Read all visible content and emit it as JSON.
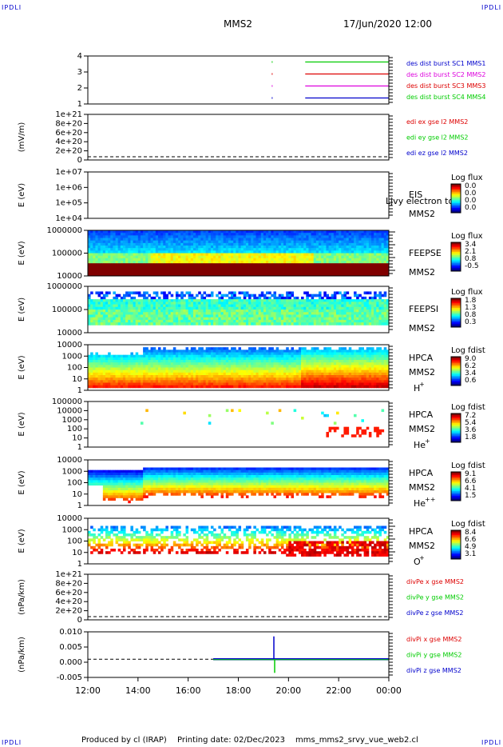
{
  "corner_label": "IPDLI",
  "header": {
    "spacecraft": "MMS2",
    "datetime": "17/Jun/2020 12:00"
  },
  "footer": {
    "produced": "Produced by cl (IRAP)",
    "printing": "Printing date: 02/Dec/2023",
    "file": "mms_mms2_srvy_vue_web2.cl"
  },
  "colors": {
    "red": "#dd0000",
    "green": "#00cc00",
    "blue": "#0000cc",
    "magenta": "#dd00dd"
  },
  "time_axis": [
    "12:00",
    "14:00",
    "16:00",
    "18:00",
    "20:00",
    "22:00",
    "00:00"
  ],
  "chart_data": [
    {
      "id": "des-dist-burst",
      "type": "line",
      "yticks": [
        "1",
        "2",
        "3",
        "4"
      ],
      "ylim": [
        0.5,
        4.5
      ],
      "series": [
        {
          "name": "des dist burst SC1 MMS1",
          "color": "#00cc00",
          "y": 4,
          "start": "20:40",
          "end": "00:00"
        },
        {
          "name": "des dist burst SC2 MMS2",
          "color": "#dd0000",
          "y": 3,
          "start": "20:40",
          "end": "00:00"
        },
        {
          "name": "des dist burst SC3 MMS3",
          "color": "#dd00dd",
          "y": 2,
          "start": "20:40",
          "end": "00:00"
        },
        {
          "name": "des dist burst SC4 MMS4",
          "color": "#0000cc",
          "y": 1,
          "start": "20:40",
          "end": "00:00"
        }
      ],
      "legend_colors": [
        "#0000cc",
        "#dd00dd",
        "#dd0000",
        "#00cc00"
      ],
      "legend": [
        "des dist burst SC1 MMS1",
        "des dist burst SC2 MMS2",
        "des dist burst SC3 MMS3",
        "des dist burst SC4 MMS4"
      ]
    },
    {
      "id": "edi-e",
      "type": "line",
      "ylabel": "(mV/m)",
      "yticks": [
        "1e+21",
        "8e+20",
        "6e+20",
        "4e+20",
        "2e+20",
        "0"
      ],
      "ylim": [
        0,
        1e+21
      ],
      "legend_colors": [
        "#dd0000",
        "#00cc00",
        "#0000cc"
      ],
      "legend": [
        "edi ex gse l2 MMS2",
        "edi ey gse l2 MMS2",
        "edi ez gse l2 MMS2"
      ]
    },
    {
      "id": "eis",
      "type": "heatmap",
      "ylabel": "E (eV)",
      "yticks": [
        "1e+07",
        "1e+06",
        "1e+05",
        "1e+04"
      ],
      "ylim": [
        10000.0,
        10000000.0
      ],
      "scale": "log",
      "labels": [
        "EIS",
        "MMS2"
      ],
      "overlay_text": "Ljvy electron to",
      "colorbar": {
        "title": "Log flux",
        "ticks": [
          "0.0",
          "0.0",
          "0.0",
          "0.0"
        ]
      }
    },
    {
      "id": "feeps-e",
      "type": "heatmap",
      "ylabel": "E (eV)",
      "yticks": [
        "1000000",
        "100000",
        "10000"
      ],
      "ylim": [
        10000,
        1000000
      ],
      "scale": "log",
      "labels": [
        "FEEPSE",
        "MMS2"
      ],
      "colorbar": {
        "title": "Log flux",
        "ticks": [
          "3.4",
          "2.1",
          "0.8",
          "-0.5"
        ]
      }
    },
    {
      "id": "feeps-i",
      "type": "heatmap",
      "ylabel": "E (eV)",
      "yticks": [
        "1000000",
        "100000",
        "10000"
      ],
      "ylim": [
        10000,
        1000000
      ],
      "scale": "log",
      "labels": [
        "FEEPSI",
        "MMS2"
      ],
      "colorbar": {
        "title": "Log flux",
        "ticks": [
          "1.8",
          "1.3",
          "0.8",
          "0.3"
        ]
      }
    },
    {
      "id": "hpca-h",
      "type": "heatmap",
      "ylabel": "E (eV)",
      "yticks": [
        "10000",
        "1000",
        "100",
        "10",
        "1"
      ],
      "ylim": [
        1,
        40000
      ],
      "scale": "log",
      "labels": [
        "HPCA",
        "MMS2"
      ],
      "species": "H",
      "species_sup": "+",
      "colorbar": {
        "title": "Log fdist",
        "ticks": [
          "9.0",
          "6.2",
          "3.4",
          "0.6"
        ]
      }
    },
    {
      "id": "hpca-he1",
      "type": "heatmap",
      "ylabel": "E (eV)",
      "yticks": [
        "100000",
        "10000",
        "1000",
        "100",
        "10",
        "1"
      ],
      "ylim": [
        1,
        100000
      ],
      "scale": "log",
      "labels": [
        "HPCA",
        "MMS2"
      ],
      "species": "He",
      "species_sup": "+",
      "colorbar": {
        "title": "Log fdist",
        "ticks": [
          "7.2",
          "5.4",
          "3.6",
          "1.8"
        ]
      }
    },
    {
      "id": "hpca-he2",
      "type": "heatmap",
      "ylabel": "E (eV)",
      "yticks": [
        "10000",
        "1000",
        "100",
        "10",
        "1"
      ],
      "ylim": [
        1,
        40000
      ],
      "scale": "log",
      "labels": [
        "HPCA",
        "MMS2"
      ],
      "species": "He",
      "species_sup": "++",
      "colorbar": {
        "title": "Log fdist",
        "ticks": [
          "9.1",
          "6.6",
          "4.1",
          "1.5"
        ]
      }
    },
    {
      "id": "hpca-o",
      "type": "heatmap",
      "ylabel": "E (eV)",
      "yticks": [
        "10000",
        "1000",
        "100",
        "10",
        "1"
      ],
      "ylim": [
        1,
        40000
      ],
      "scale": "log",
      "labels": [
        "HPCA",
        "MMS2"
      ],
      "species": "O",
      "species_sup": "+",
      "colorbar": {
        "title": "Log fdist",
        "ticks": [
          "8.4",
          "6.6",
          "4.9",
          "3.1"
        ]
      }
    },
    {
      "id": "divpe",
      "type": "line",
      "ylabel": "(nPa/km)",
      "yticks": [
        "1e+21",
        "8e+20",
        "6e+20",
        "4e+20",
        "2e+20",
        "0"
      ],
      "ylim": [
        0,
        1e+21
      ],
      "legend_colors": [
        "#dd0000",
        "#00cc00",
        "#0000cc"
      ],
      "legend": [
        "divPe x gse MMS2",
        "divPe y gse MMS2",
        "divPe z gse MMS2"
      ]
    },
    {
      "id": "divpi",
      "type": "line",
      "ylabel": "(nPa/km)",
      "yticks": [
        "0.010",
        "0.005",
        "0.000",
        "-0.005"
      ],
      "ylim": [
        -0.008,
        0.012
      ],
      "spike": {
        "time": "19:25",
        "blue_peak": 0.01,
        "green_min": -0.006
      },
      "legend_colors": [
        "#dd0000",
        "#00cc00",
        "#0000cc"
      ],
      "legend": [
        "divPi x gse MMS2",
        "divPi y gse MMS2",
        "divPi z gse MMS2"
      ]
    }
  ]
}
